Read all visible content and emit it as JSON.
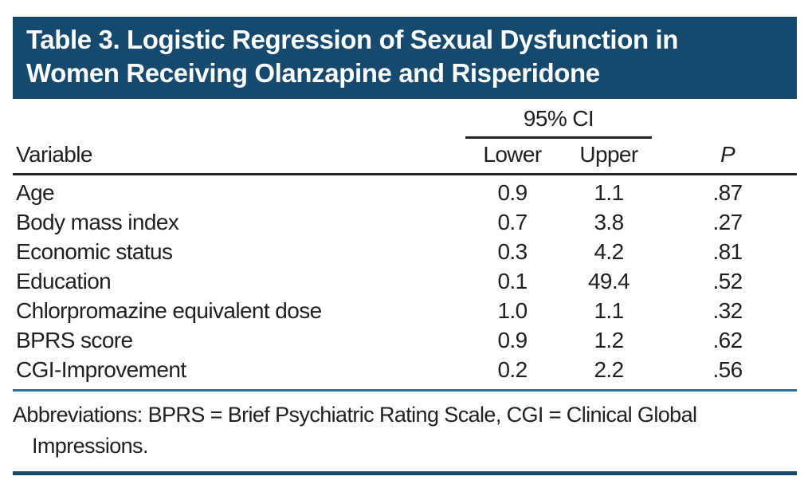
{
  "table": {
    "title_line1": "Table 3. Logistic Regression of Sexual Dysfunction in",
    "title_line2": "Women Receiving Olanzapine and Risperidone",
    "spanner_label": "95% CI",
    "columns": {
      "variable": "Variable",
      "lower": "Lower",
      "upper": "Upper",
      "p": "P"
    },
    "rows": [
      {
        "variable": "Age",
        "lower": "0.9",
        "upper": "1.1",
        "p": ".87"
      },
      {
        "variable": "Body mass index",
        "lower": "0.7",
        "upper": "3.8",
        "p": ".27"
      },
      {
        "variable": "Economic status",
        "lower": "0.3",
        "upper": "4.2",
        "p": ".81"
      },
      {
        "variable": "Education",
        "lower": "0.1",
        "upper": "49.4",
        "p": ".52"
      },
      {
        "variable": "Chlorpromazine equivalent dose",
        "lower": "1.0",
        "upper": "1.1",
        "p": ".32"
      },
      {
        "variable": "BPRS score",
        "lower": "0.9",
        "upper": "1.2",
        "p": ".62"
      },
      {
        "variable": "CGI-Improvement",
        "lower": "0.2",
        "upper": "2.2",
        "p": ".56"
      }
    ],
    "footnote": "Abbreviations: BPRS = Brief Psychiatric Rating Scale, CGI = Clinical Global Impressions."
  },
  "colors": {
    "navy": "#15496D",
    "rule_blue": "#2271A3",
    "text": "#231F20",
    "rule_dark": "#262324",
    "title_text": "#FFFFFF"
  }
}
